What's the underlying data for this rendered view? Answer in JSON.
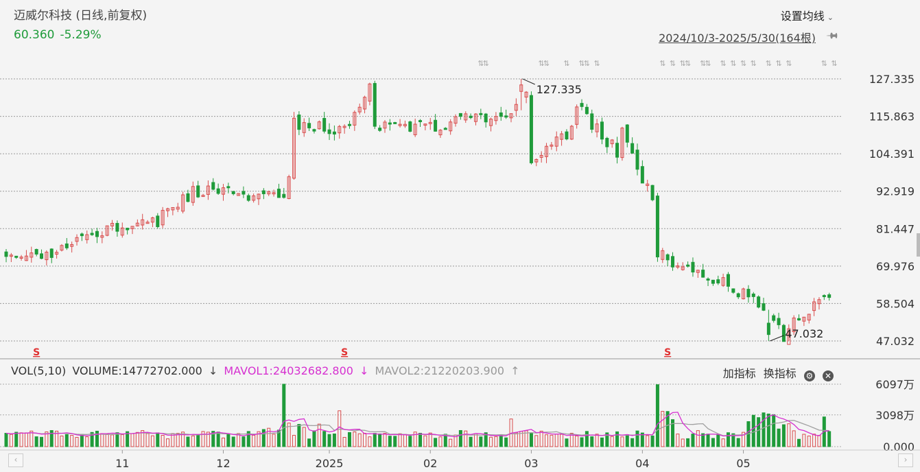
{
  "header": {
    "title": "迈威尔科技 (日线,前复权)",
    "price": "60.360",
    "change_pct": "-5.29%",
    "ma_setting_label": "设置均线",
    "date_range": "2024/10/3-2025/5/30(164根)"
  },
  "price_axis": {
    "ticks": [
      "127.335",
      "115.863",
      "104.391",
      "92.919",
      "81.447",
      "69.976",
      "58.504",
      "47.032"
    ]
  },
  "annotations": {
    "high_label": "127.335",
    "low_label": "47.032",
    "s_marker": "S"
  },
  "volume_panel": {
    "name": "VOL(5,10)",
    "volume": "VOLUME:14772702.000",
    "mavol1": "MAVOL1:24032682.800",
    "mavol2": "MAVOL2:21220203.900",
    "arrow_down": "↓",
    "arrow_up": "↑",
    "axis_ticks": [
      "6097万",
      "3098万",
      "0.000"
    ]
  },
  "tools": {
    "add_indicator": "加指标",
    "switch_indicator": "换指标"
  },
  "x_axis": {
    "labels": [
      "11",
      "12",
      "2025",
      "02",
      "03",
      "04",
      "05"
    ]
  },
  "nav": {
    "prev": "‹",
    "next": "›"
  },
  "colors": {
    "up": "#d94b4b",
    "down": "#1f9b3a",
    "mavol1": "#d631d0",
    "mavol2": "#a0a0a0"
  },
  "chart_data": {
    "type": "candlestick",
    "title": "迈威尔科技 (日线,前复权)",
    "period": "2024/10/3-2025/5/30",
    "bar_count": 164,
    "ylim": [
      47.032,
      127.335
    ],
    "y_ticks": [
      127.335,
      115.863,
      104.391,
      92.919,
      81.447,
      69.976,
      58.504,
      47.032
    ],
    "x_labels": [
      "11",
      "12",
      "2025",
      "02",
      "03",
      "04",
      "05"
    ],
    "high": 127.335,
    "low": 47.032,
    "last_close": 60.36,
    "change_pct": -5.29,
    "segments": [
      {
        "from": 0,
        "to": 8,
        "start": 72,
        "end": 72.5,
        "dir": 1
      },
      {
        "from": 8,
        "to": 18,
        "start": 73,
        "end": 81,
        "dir": 1
      },
      {
        "from": 18,
        "to": 30,
        "start": 81,
        "end": 84,
        "dir": 1
      },
      {
        "from": 30,
        "to": 38,
        "start": 84,
        "end": 93,
        "dir": 1
      },
      {
        "from": 38,
        "to": 55,
        "start": 93,
        "end": 91,
        "dir": 0
      },
      {
        "from": 55,
        "to": 57,
        "start": 91,
        "end": 96,
        "dir": 1
      },
      {
        "from": 57,
        "to": 67,
        "start": 114,
        "end": 112,
        "dir": 0
      },
      {
        "from": 67,
        "to": 73,
        "start": 112,
        "end": 124,
        "dir": 1
      },
      {
        "from": 73,
        "to": 85,
        "start": 113,
        "end": 113,
        "dir": 0
      },
      {
        "from": 85,
        "to": 100,
        "start": 113,
        "end": 117,
        "dir": 1
      },
      {
        "from": 100,
        "to": 104,
        "start": 117,
        "end": 125,
        "dir": 1
      },
      {
        "from": 104,
        "to": 113,
        "start": 103,
        "end": 111,
        "dir": 1
      },
      {
        "from": 113,
        "to": 122,
        "start": 119,
        "end": 105,
        "dir": -1
      },
      {
        "from": 122,
        "to": 129,
        "start": 112,
        "end": 90,
        "dir": -1
      },
      {
        "from": 129,
        "to": 135,
        "start": 74,
        "end": 70,
        "dir": 0
      },
      {
        "from": 135,
        "to": 149,
        "start": 70,
        "end": 60,
        "dir": -1
      },
      {
        "from": 149,
        "to": 155,
        "start": 58,
        "end": 48,
        "dir": -1
      },
      {
        "from": 155,
        "to": 158,
        "start": 52,
        "end": 54,
        "dir": 0
      },
      {
        "from": 158,
        "to": 164,
        "start": 55,
        "end": 61,
        "dir": 1
      }
    ],
    "volume_ylim": [
      0,
      6097
    ],
    "volume_unit": "万",
    "volume_ticks": [
      "6097万",
      "3098万",
      "0.000"
    ],
    "mavol_series": [
      {
        "name": "MAVOL1",
        "last": 24032682.8
      },
      {
        "name": "MAVOL2",
        "last": 21220203.9
      }
    ]
  }
}
